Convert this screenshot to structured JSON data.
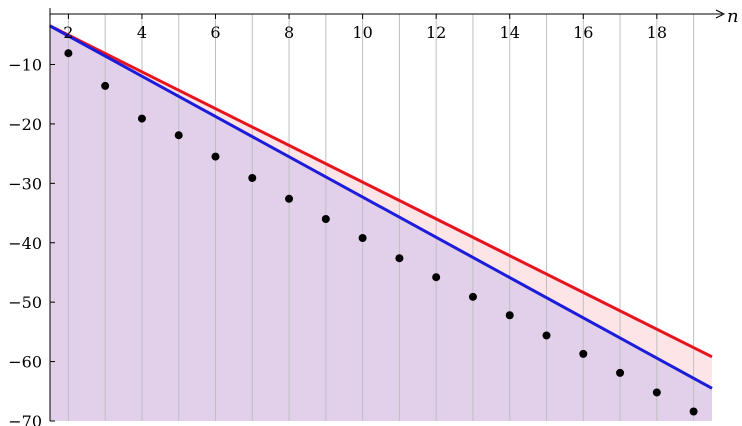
{
  "chart_data": {
    "type": "line",
    "title": "",
    "xlabel": "n",
    "ylabel": "",
    "xlim": [
      1.5,
      19.5
    ],
    "ylim": [
      -70,
      -1.5
    ],
    "grid": "vertical",
    "x_ticks": [
      2,
      4,
      6,
      8,
      10,
      12,
      14,
      16,
      18
    ],
    "x_tick_labels": [
      "2",
      "4",
      "6",
      "8",
      "10",
      "12",
      "14",
      "16",
      "18"
    ],
    "y_ticks": [
      -10,
      -20,
      -30,
      -40,
      -50,
      -60,
      -70
    ],
    "y_tick_labels": [
      "−10",
      "−20",
      "−30",
      "−40",
      "−50",
      "−60",
      "−70"
    ],
    "series": [
      {
        "role": "upper bound line",
        "color": "#e8141c",
        "x": [
          1.5,
          19.5
        ],
        "y": [
          -3.5,
          -59.2
        ]
      },
      {
        "role": "lower bound line",
        "color": "#1c1cdb",
        "x": [
          1.5,
          19.5
        ],
        "y": [
          -3.5,
          -64.5
        ]
      },
      {
        "role": "points",
        "color": "#000000",
        "x": [
          2,
          3,
          4,
          5,
          6,
          7,
          8,
          9,
          10,
          11,
          12,
          13,
          14,
          15,
          16,
          17,
          18,
          19
        ],
        "y": [
          -8.1,
          -13.6,
          -19.1,
          -21.9,
          -25.5,
          -29.1,
          -32.6,
          -36.0,
          -39.2,
          -42.6,
          -45.8,
          -49.1,
          -52.2,
          -55.6,
          -58.7,
          -61.9,
          -65.2,
          -68.4
        ]
      }
    ],
    "fills": {
      "between_lines_color": "#fde4e6",
      "below_lower_color": "#e2d0ea"
    }
  }
}
